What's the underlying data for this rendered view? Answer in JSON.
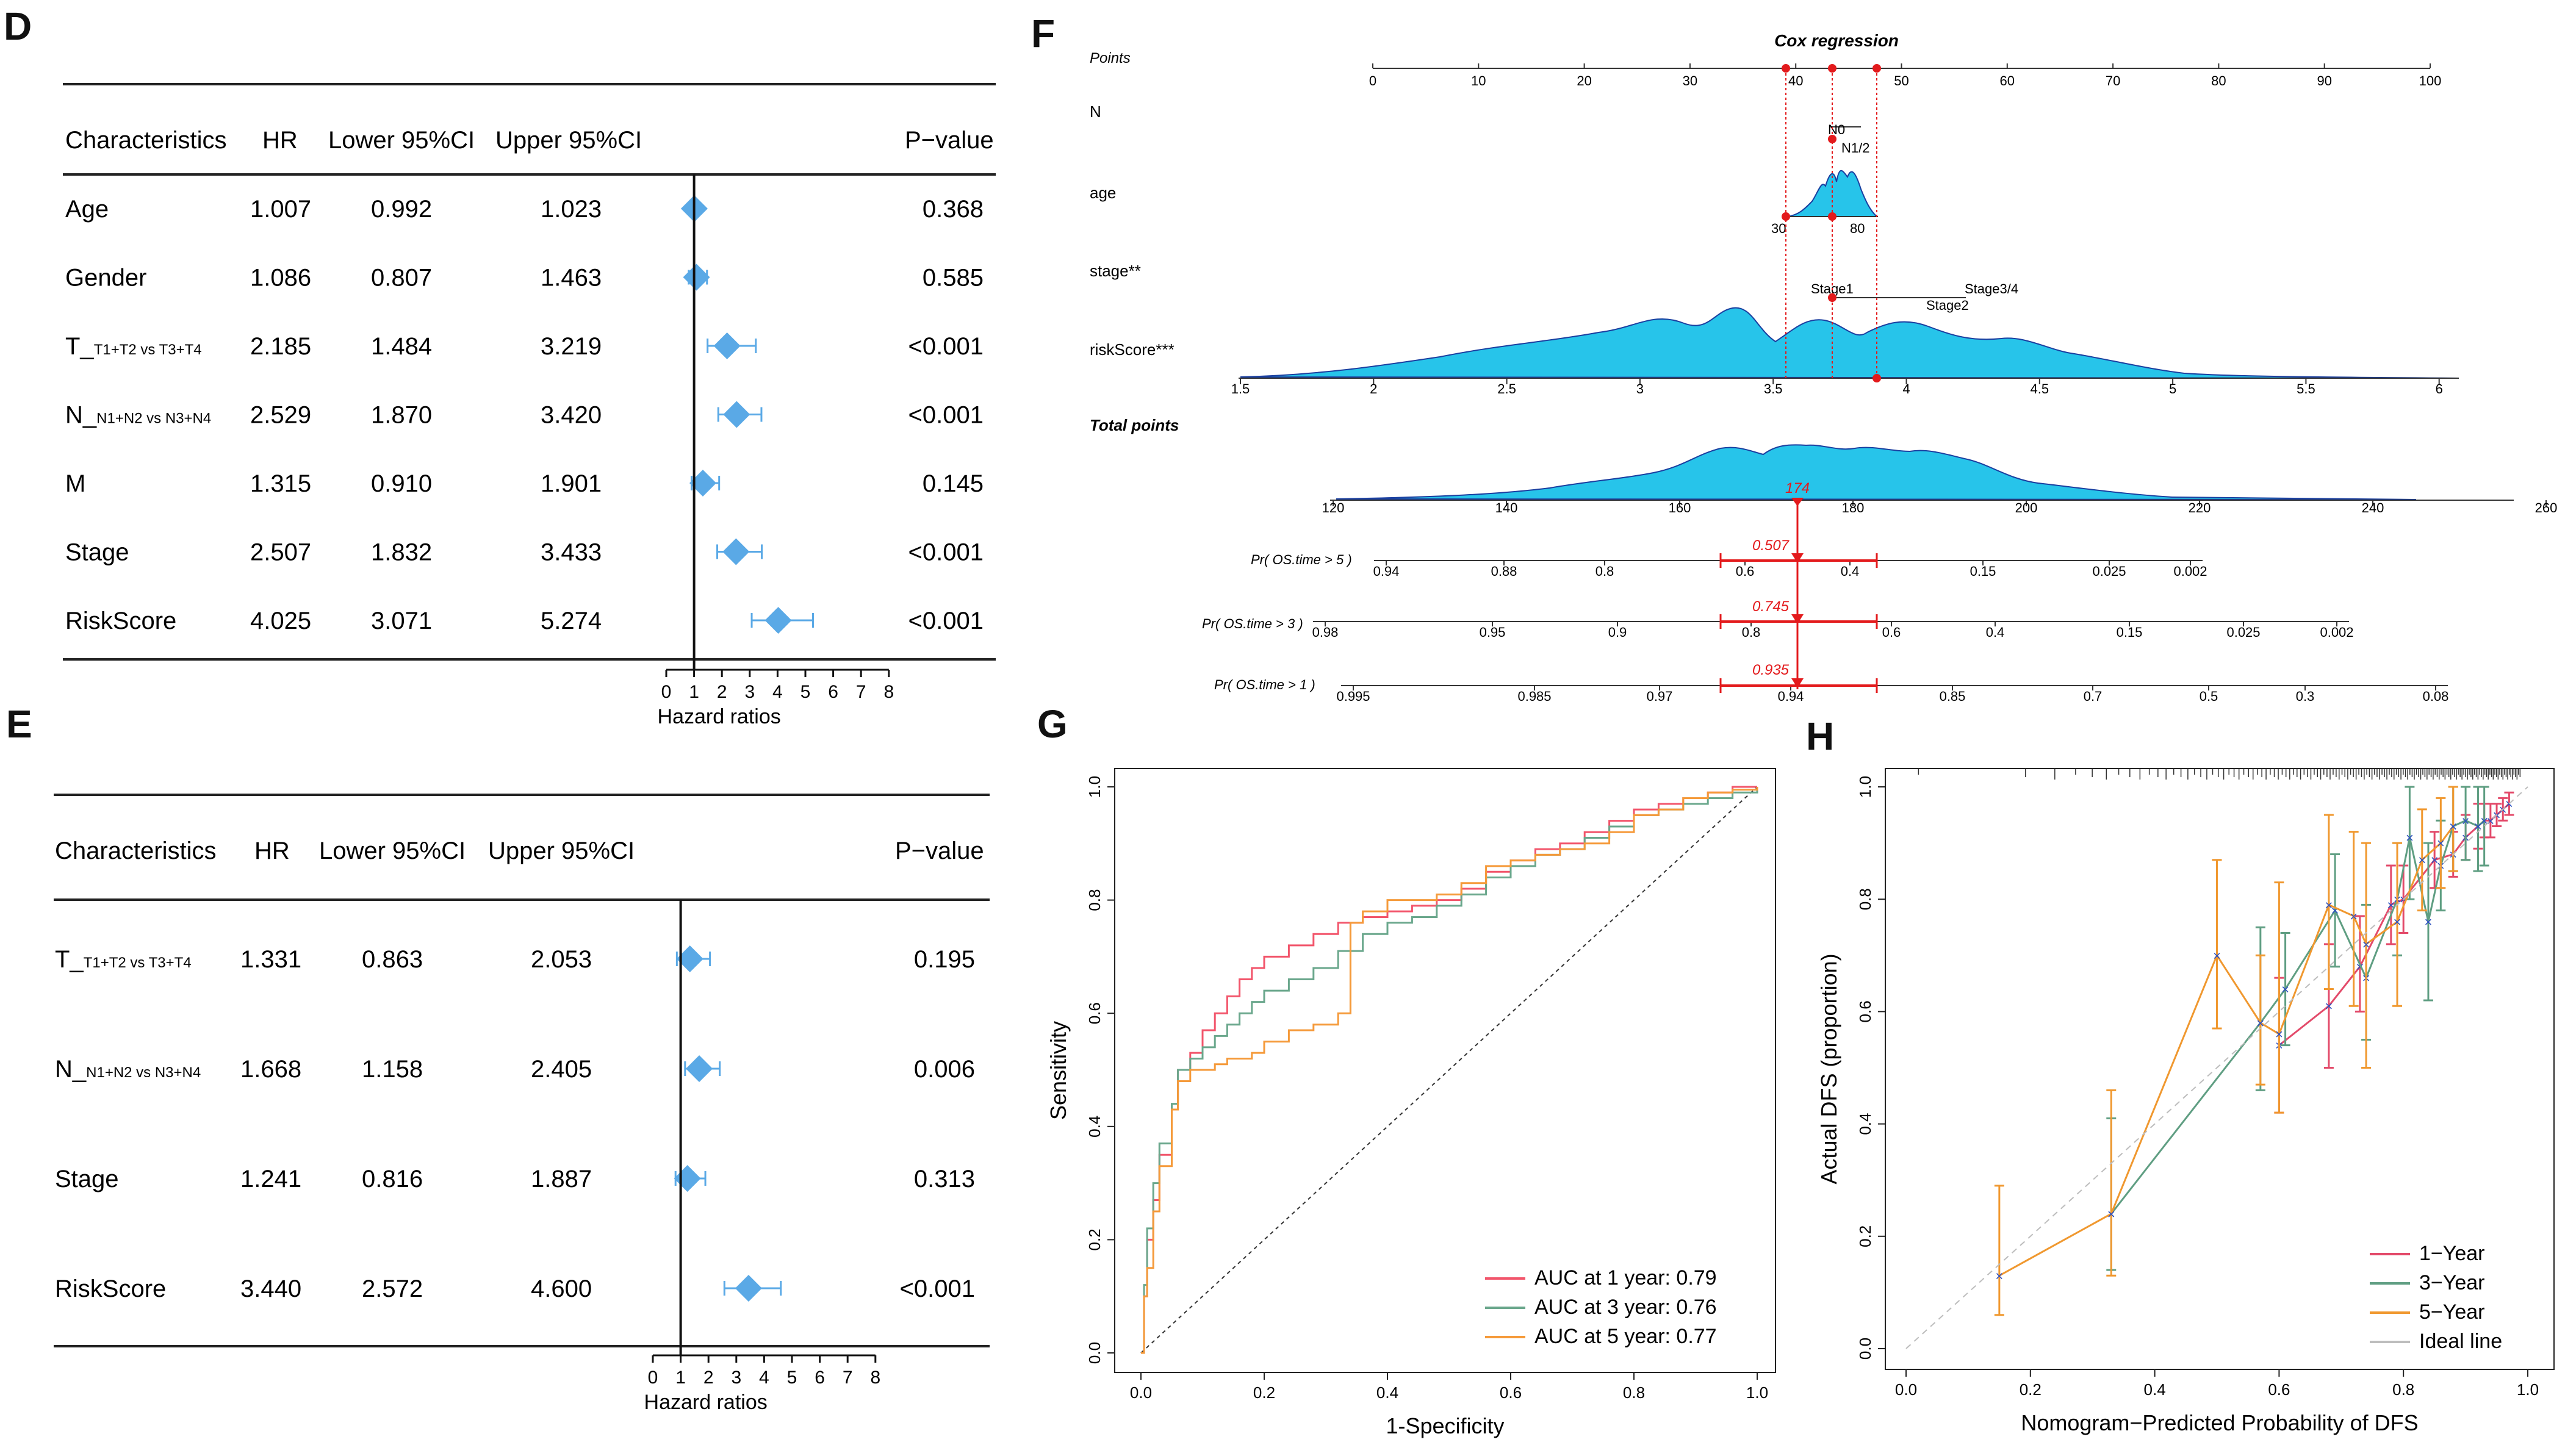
{
  "panels": {
    "D": "D",
    "E": "E",
    "F": "F",
    "G": "G",
    "H": "H"
  },
  "forest_D": {
    "headers": {
      "characteristics": "Characteristics",
      "hr": "HR",
      "lower": "Lower 95%CI",
      "upper": "Upper 95%CI",
      "pvalue": "P−value"
    },
    "rows": [
      {
        "name": "Age",
        "sub": "",
        "hr": "1.007",
        "lower": "0.992",
        "upper": "1.023",
        "p": "0.368",
        "hr_v": 1.007,
        "lo_v": 0.992,
        "up_v": 1.023
      },
      {
        "name": "Gender",
        "sub": "",
        "hr": "1.086",
        "lower": "0.807",
        "upper": "1.463",
        "p": "0.585",
        "hr_v": 1.086,
        "lo_v": 0.807,
        "up_v": 1.463
      },
      {
        "name": "T_",
        "sub": "T1+T2 vs T3+T4",
        "hr": "2.185",
        "lower": "1.484",
        "upper": "3.219",
        "p": "<0.001",
        "hr_v": 2.185,
        "lo_v": 1.484,
        "up_v": 3.219
      },
      {
        "name": "N_",
        "sub": "N1+N2 vs N3+N4",
        "hr": "2.529",
        "lower": "1.870",
        "upper": "3.420",
        "p": "<0.001",
        "hr_v": 2.529,
        "lo_v": 1.87,
        "up_v": 3.42
      },
      {
        "name": "M",
        "sub": "",
        "hr": "1.315",
        "lower": "0.910",
        "upper": "1.901",
        "p": "0.145",
        "hr_v": 1.315,
        "lo_v": 0.91,
        "up_v": 1.901
      },
      {
        "name": "Stage",
        "sub": "",
        "hr": "2.507",
        "lower": "1.832",
        "upper": "3.433",
        "p": "<0.001",
        "hr_v": 2.507,
        "lo_v": 1.832,
        "up_v": 3.433
      },
      {
        "name": "RiskScore",
        "sub": "",
        "hr": "4.025",
        "lower": "3.071",
        "upper": "5.274",
        "p": "<0.001",
        "hr_v": 4.025,
        "lo_v": 3.071,
        "up_v": 5.274
      }
    ],
    "axis_ticks": [
      "0",
      "1",
      "2",
      "3",
      "4",
      "5",
      "6",
      "7",
      "8"
    ],
    "axis_label": "Hazard ratios"
  },
  "forest_E": {
    "headers": {
      "characteristics": "Characteristics",
      "hr": "HR",
      "lower": "Lower 95%CI",
      "upper": "Upper 95%CI",
      "pvalue": "P−value"
    },
    "rows": [
      {
        "name": "T_",
        "sub": "T1+T2 vs T3+T4",
        "hr": "1.331",
        "lower": "0.863",
        "upper": "2.053",
        "p": "0.195",
        "hr_v": 1.331,
        "lo_v": 0.863,
        "up_v": 2.053
      },
      {
        "name": "N_",
        "sub": "N1+N2 vs N3+N4",
        "hr": "1.668",
        "lower": "1.158",
        "upper": "2.405",
        "p": "0.006",
        "hr_v": 1.668,
        "lo_v": 1.158,
        "up_v": 2.405
      },
      {
        "name": "Stage",
        "sub": "",
        "hr": "1.241",
        "lower": "0.816",
        "upper": "1.887",
        "p": "0.313",
        "hr_v": 1.241,
        "lo_v": 0.816,
        "up_v": 1.887
      },
      {
        "name": "RiskScore",
        "sub": "",
        "hr": "3.440",
        "lower": "2.572",
        "upper": "4.600",
        "p": "<0.001",
        "hr_v": 3.44,
        "lo_v": 2.572,
        "up_v": 4.6
      }
    ],
    "axis_ticks": [
      "0",
      "1",
      "2",
      "3",
      "4",
      "5",
      "6",
      "7",
      "8"
    ],
    "axis_label": "Hazard ratios"
  },
  "nomogram_F": {
    "title": "Cox regression",
    "points_label": "Points",
    "points_ticks": [
      "0",
      "10",
      "20",
      "30",
      "40",
      "50",
      "60",
      "70",
      "80",
      "90",
      "100"
    ],
    "n_label": "N",
    "n_levels": [
      "N0",
      "N1/2"
    ],
    "age_label": "age",
    "age_ticks": [
      "30",
      "80"
    ],
    "stage_label": "stage**",
    "stage_levels": [
      "Stage1",
      "Stage3/4",
      "Stage2"
    ],
    "risk_label": "riskScore***",
    "risk_ticks": [
      "1.5",
      "2",
      "2.5",
      "3",
      "3.5",
      "4",
      "4.5",
      "5",
      "5.5",
      "6"
    ],
    "total_label": "Total points",
    "total_ticks": [
      "120",
      "140",
      "160",
      "180",
      "200",
      "220",
      "240",
      "260"
    ],
    "total_value": "174",
    "pr5_label": "Pr( OS.time > 5 )",
    "pr5_ticks": [
      "0.94",
      "0.88",
      "0.8",
      "0.6",
      "0.4",
      "0.15",
      "0.025",
      "0.002"
    ],
    "pr5_value": "0.507",
    "pr3_label": "Pr( OS.time > 3 )",
    "pr3_ticks": [
      "0.98",
      "0.95",
      "0.9",
      "0.8",
      "0.6",
      "0.4",
      "0.15",
      "0.025",
      "0.002"
    ],
    "pr3_value": "0.745",
    "pr1_label": "Pr( OS.time > 1 )",
    "pr1_ticks": [
      "0.995",
      "0.985",
      "0.97",
      "0.94",
      "0.85",
      "0.7",
      "0.5",
      "0.3",
      "0.08"
    ],
    "pr1_value": "0.935"
  },
  "chart_data": [
    {
      "type": "line",
      "panel": "G",
      "title": "",
      "xlabel": "1-Specificity",
      "ylabel": "Sensitivity",
      "xlim": [
        0,
        1
      ],
      "ylim": [
        0,
        1
      ],
      "ticks": [
        "0.0",
        "0.2",
        "0.4",
        "0.6",
        "0.8",
        "1.0"
      ],
      "series": [
        {
          "name": "AUC at 1 year: 0.79",
          "color": "#f2556b",
          "x": [
            0,
            0.005,
            0.01,
            0.02,
            0.03,
            0.05,
            0.06,
            0.08,
            0.1,
            0.12,
            0.14,
            0.16,
            0.18,
            0.2,
            0.24,
            0.28,
            0.32,
            0.36,
            0.4,
            0.44,
            0.48,
            0.52,
            0.56,
            0.6,
            0.64,
            0.68,
            0.72,
            0.76,
            0.8,
            0.84,
            0.88,
            0.92,
            0.96,
            1
          ],
          "y": [
            0,
            0.1,
            0.2,
            0.27,
            0.35,
            0.43,
            0.5,
            0.53,
            0.57,
            0.6,
            0.63,
            0.66,
            0.68,
            0.7,
            0.72,
            0.74,
            0.76,
            0.77,
            0.78,
            0.79,
            0.8,
            0.82,
            0.85,
            0.87,
            0.89,
            0.9,
            0.92,
            0.94,
            0.96,
            0.97,
            0.98,
            0.99,
            1,
            1
          ]
        },
        {
          "name": "AUC at 3 year: 0.76",
          "color": "#6aa78c",
          "x": [
            0,
            0.005,
            0.01,
            0.02,
            0.03,
            0.05,
            0.06,
            0.08,
            0.1,
            0.12,
            0.14,
            0.16,
            0.18,
            0.2,
            0.24,
            0.28,
            0.32,
            0.36,
            0.4,
            0.44,
            0.48,
            0.52,
            0.56,
            0.6,
            0.64,
            0.68,
            0.72,
            0.76,
            0.8,
            0.84,
            0.88,
            0.92,
            0.96,
            1
          ],
          "y": [
            0,
            0.12,
            0.22,
            0.3,
            0.37,
            0.44,
            0.5,
            0.52,
            0.54,
            0.56,
            0.58,
            0.6,
            0.62,
            0.64,
            0.66,
            0.68,
            0.71,
            0.74,
            0.76,
            0.77,
            0.79,
            0.81,
            0.84,
            0.86,
            0.88,
            0.89,
            0.91,
            0.93,
            0.95,
            0.96,
            0.97,
            0.98,
            0.99,
            1
          ]
        },
        {
          "name": "AUC at 5 year: 0.77",
          "color": "#f59a3a",
          "x": [
            0,
            0.005,
            0.01,
            0.02,
            0.03,
            0.05,
            0.06,
            0.08,
            0.1,
            0.12,
            0.14,
            0.16,
            0.18,
            0.2,
            0.24,
            0.28,
            0.32,
            0.33,
            0.34,
            0.36,
            0.4,
            0.44,
            0.48,
            0.52,
            0.56,
            0.6,
            0.64,
            0.68,
            0.72,
            0.76,
            0.8,
            0.84,
            0.88,
            0.92,
            0.96,
            1
          ],
          "y": [
            0,
            0.1,
            0.15,
            0.25,
            0.33,
            0.43,
            0.48,
            0.5,
            0.5,
            0.51,
            0.52,
            0.52,
            0.53,
            0.55,
            0.57,
            0.58,
            0.6,
            0.6,
            0.76,
            0.78,
            0.8,
            0.8,
            0.81,
            0.83,
            0.86,
            0.87,
            0.88,
            0.89,
            0.9,
            0.92,
            0.95,
            0.96,
            0.98,
            0.99,
            0.995,
            1
          ]
        }
      ]
    },
    {
      "type": "line",
      "panel": "H",
      "title": "",
      "xlabel": "Nomogram−Predicted Probability of DFS",
      "ylabel": "Actual DFS (proportion)",
      "xlim": [
        0,
        1
      ],
      "ylim": [
        0,
        1
      ],
      "ticks": [
        "0.0",
        "0.2",
        "0.4",
        "0.6",
        "0.8",
        "1.0"
      ],
      "series": [
        {
          "name": "1−Year",
          "color": "#e34a6a",
          "x": [
            0.6,
            0.68,
            0.73,
            0.78,
            0.8,
            0.85,
            0.88,
            0.9,
            0.92,
            0.93,
            0.94,
            0.95,
            0.96,
            0.97
          ],
          "y": [
            0.54,
            0.61,
            0.68,
            0.79,
            0.8,
            0.87,
            0.88,
            0.91,
            0.93,
            0.94,
            0.94,
            0.95,
            0.96,
            0.97
          ],
          "lo": [
            0.42,
            0.5,
            0.6,
            0.72,
            0.74,
            0.82,
            0.84,
            0.87,
            0.89,
            0.91,
            0.91,
            0.93,
            0.94,
            0.95
          ],
          "hi": [
            0.66,
            0.72,
            0.77,
            0.86,
            0.86,
            0.92,
            0.92,
            0.95,
            0.97,
            0.97,
            0.97,
            0.97,
            0.98,
            0.99
          ]
        },
        {
          "name": "3−Year",
          "color": "#5f9e82",
          "x": [
            0.33,
            0.57,
            0.61,
            0.69,
            0.74,
            0.79,
            0.81,
            0.84,
            0.86,
            0.88,
            0.9,
            0.92,
            0.93
          ],
          "y": [
            0.24,
            0.58,
            0.64,
            0.78,
            0.66,
            0.8,
            0.91,
            0.76,
            0.86,
            0.93,
            0.94,
            0.93,
            0.94
          ],
          "lo": [
            0.14,
            0.46,
            0.54,
            0.68,
            0.55,
            0.7,
            0.8,
            0.62,
            0.78,
            0.85,
            0.87,
            0.85,
            0.86
          ],
          "hi": [
            0.41,
            0.75,
            0.74,
            0.88,
            0.79,
            0.9,
            1,
            0.9,
            0.94,
            1,
            1,
            1,
            1
          ]
        },
        {
          "name": "5−Year",
          "color": "#f0982f",
          "x": [
            0.15,
            0.33,
            0.5,
            0.57,
            0.6,
            0.68,
            0.72,
            0.74,
            0.79,
            0.83,
            0.86,
            0.88
          ],
          "y": [
            0.13,
            0.24,
            0.7,
            0.58,
            0.56,
            0.79,
            0.77,
            0.72,
            0.76,
            0.87,
            0.9,
            0.93
          ],
          "lo": [
            0.06,
            0.13,
            0.57,
            0.47,
            0.42,
            0.64,
            0.61,
            0.5,
            0.61,
            0.78,
            0.82,
            0.85
          ],
          "hi": [
            0.29,
            0.46,
            0.87,
            0.7,
            0.83,
            0.95,
            0.92,
            0.9,
            0.9,
            0.96,
            0.98,
            1
          ]
        },
        {
          "name": "Ideal line",
          "color": "#bdbdbd",
          "x": [
            0,
            1
          ],
          "y": [
            0,
            1
          ]
        }
      ]
    }
  ]
}
